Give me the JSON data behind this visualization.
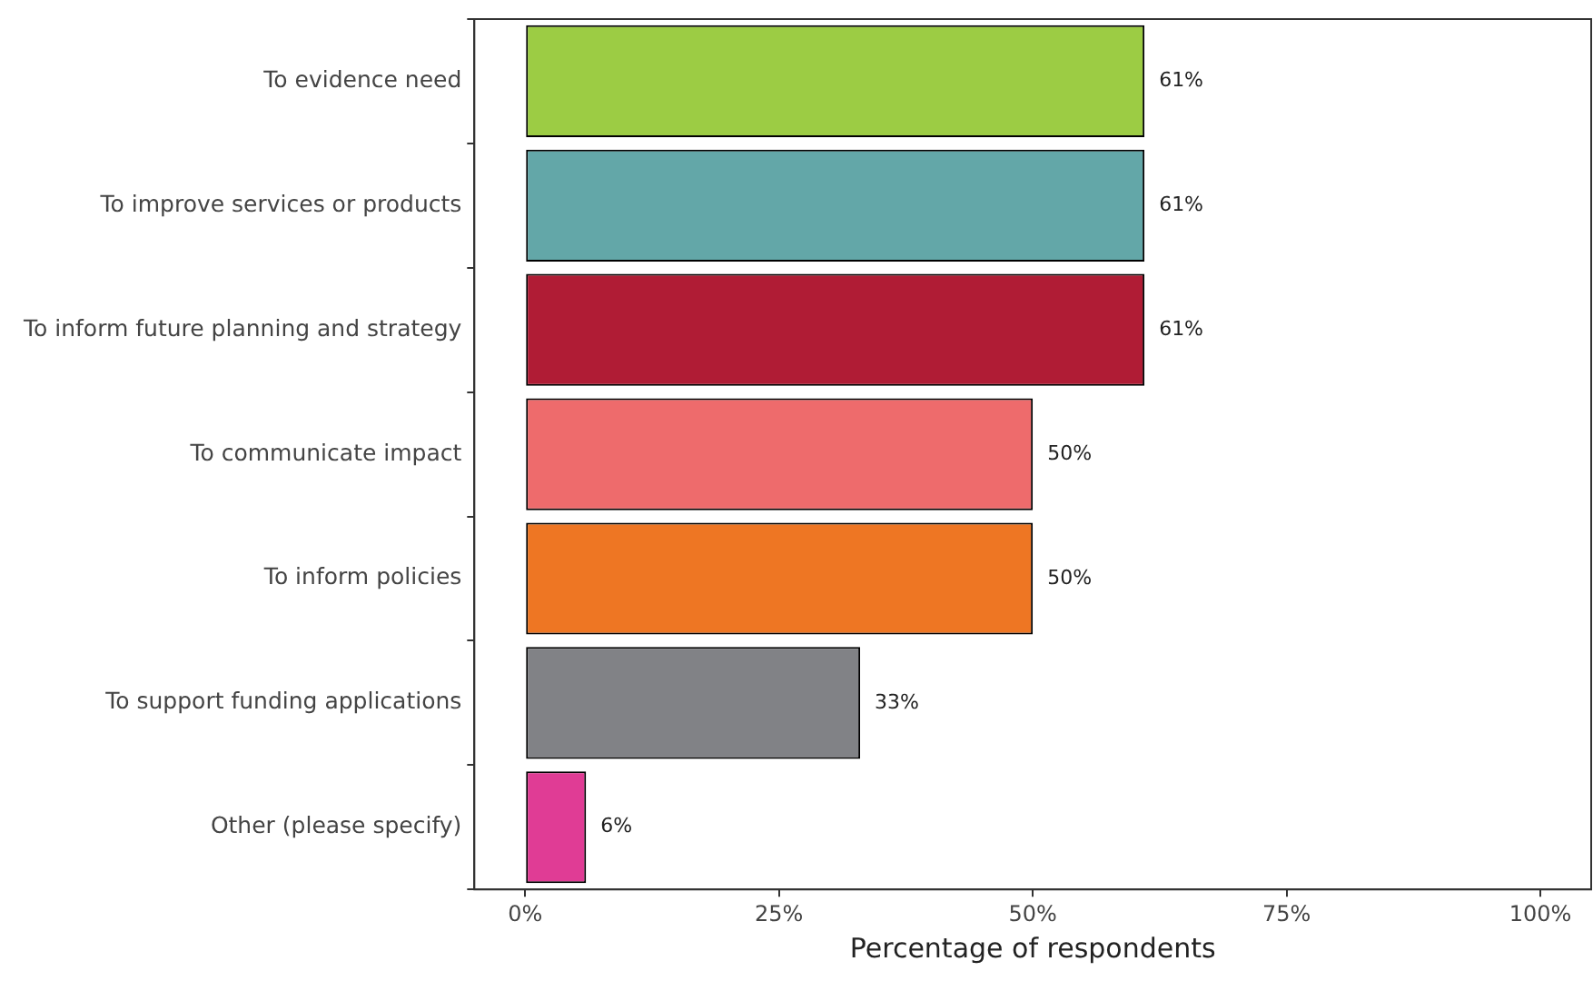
{
  "chart_data": {
    "type": "bar",
    "orientation": "horizontal",
    "xlabel": "Percentage of respondents",
    "categories": [
      "To evidence need",
      "To improve services or products",
      "To inform future planning and strategy",
      "To communicate impact",
      "To inform policies",
      "To support funding applications",
      "Other (please specify)"
    ],
    "values": [
      61,
      61,
      61,
      50,
      50,
      33,
      6
    ],
    "colors": [
      "#9ccc44",
      "#63a7a8",
      "#b01c35",
      "#ee6b6c",
      "#ee7623",
      "#818286",
      "#e03c95"
    ],
    "value_labels": [
      "61%",
      "61%",
      "61%",
      "50%",
      "50%",
      "33%",
      "6%"
    ],
    "xlim": [
      -5,
      105
    ],
    "xticks": [
      {
        "value": 0,
        "label": "0%"
      },
      {
        "value": 25,
        "label": "25%"
      },
      {
        "value": 50,
        "label": "50%"
      },
      {
        "value": 75,
        "label": "75%"
      },
      {
        "value": 100,
        "label": "100%"
      }
    ],
    "grid": false,
    "legend": false
  }
}
